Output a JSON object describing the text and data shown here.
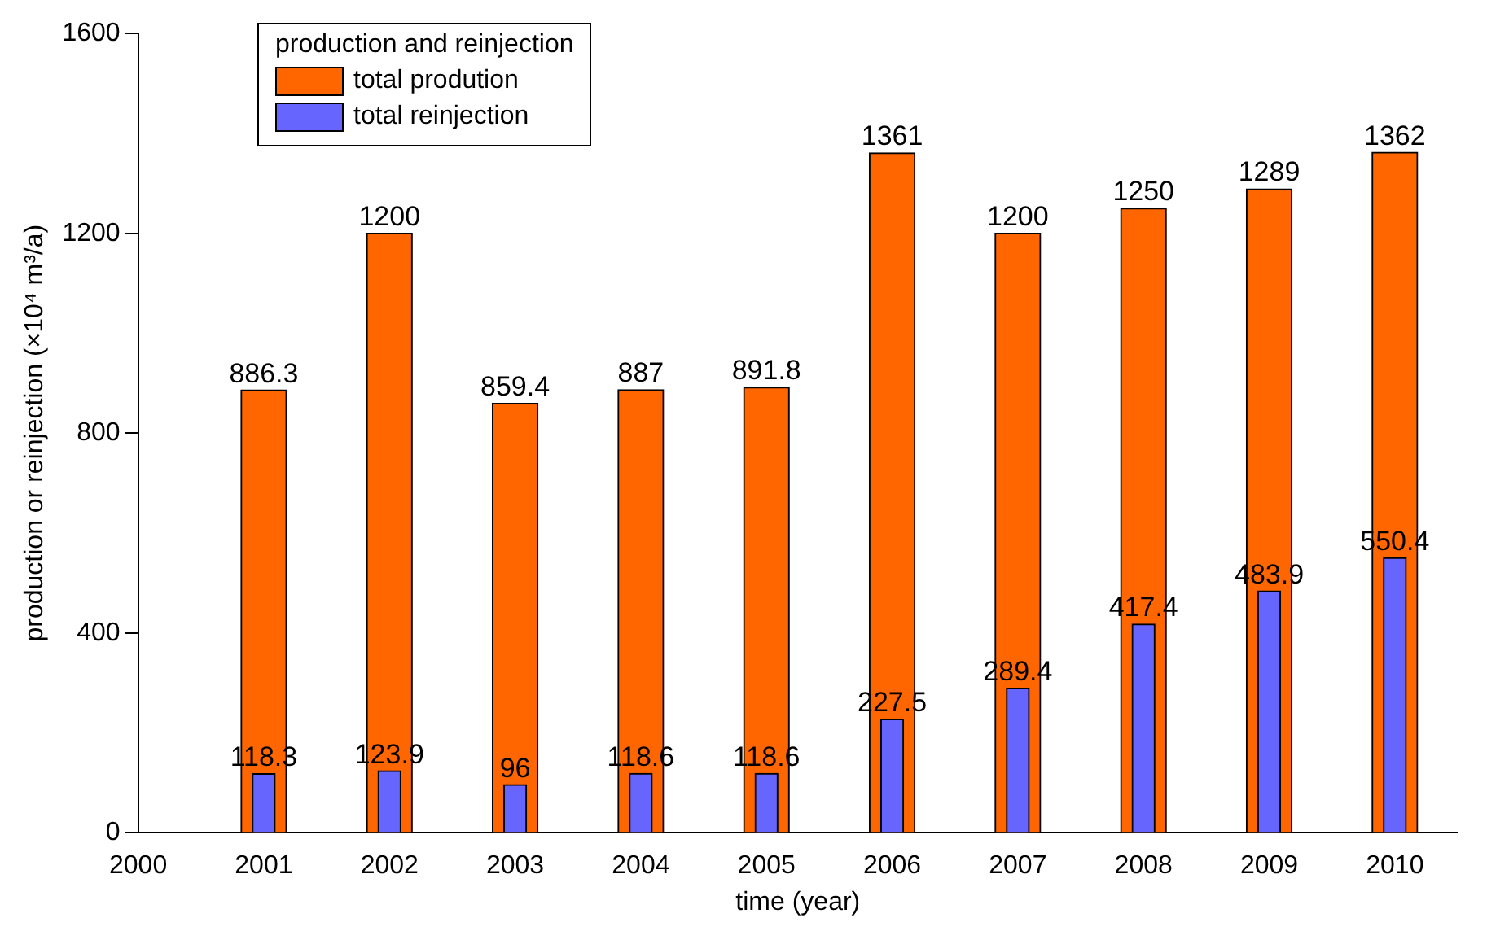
{
  "chart_data": {
    "type": "bar",
    "xlabel": "time (year)",
    "ylabel": "production or reinjection (×10⁴ m³/a)",
    "legend_title": "production and reinjection",
    "x": [
      2001,
      2002,
      2003,
      2004,
      2005,
      2006,
      2007,
      2008,
      2009,
      2010
    ],
    "series": [
      {
        "name": "total prodution",
        "color": "#ff6600",
        "values": [
          886.3,
          1200,
          859.4,
          887,
          891.8,
          1361,
          1200,
          1250,
          1289,
          1362
        ]
      },
      {
        "name": "total reinjection",
        "color": "#6666ff",
        "values": [
          118.3,
          123.9,
          96,
          118.6,
          118.6,
          227.5,
          289.4,
          417.4,
          483.9,
          550.4
        ]
      }
    ],
    "xlim": [
      2000,
      2010.5
    ],
    "xticks": [
      2000,
      2001,
      2002,
      2003,
      2004,
      2005,
      2006,
      2007,
      2008,
      2009,
      2010
    ],
    "ylim": [
      0,
      1600
    ],
    "yticks": [
      0,
      400,
      800,
      1200,
      1600
    ],
    "data_labels": true,
    "grid": false,
    "legend": "top left"
  }
}
